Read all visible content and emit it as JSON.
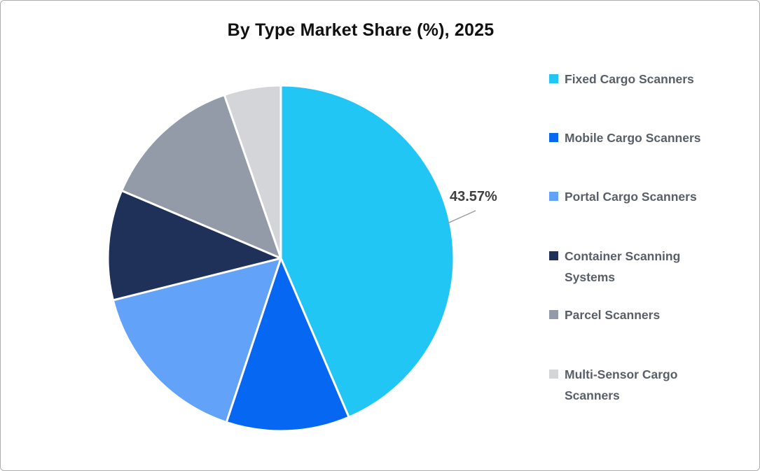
{
  "title": "By Type Market Share (%), 2025",
  "chart_data": {
    "type": "pie",
    "title": "By Type Market Share (%), 2025",
    "start_angle_deg": 0,
    "direction": "clockwise",
    "legend_position": "right",
    "slice_border_color": "#FFFFFF",
    "labels": [
      "Fixed Cargo Scanners",
      "Mobile Cargo Scanners",
      "Portal Cargo Scanners",
      "Container Scanning Systems",
      "Parcel Scanners",
      "Multi-Sensor Cargo Scanners"
    ],
    "values": [
      43.57,
      11.53,
      16.0,
      10.3,
      13.3,
      5.3
    ],
    "colors": [
      "#22C6F4",
      "#0667F2",
      "#62A2F9",
      "#1F3159",
      "#939AA8",
      "#D3D5D9"
    ],
    "data_label": {
      "text": "43.57%",
      "series_index": 0,
      "color": "#3F3F3F"
    },
    "leader_line_color": "#9B9B9B",
    "legend_text_color": "#585F68",
    "title_color": "#111111"
  }
}
